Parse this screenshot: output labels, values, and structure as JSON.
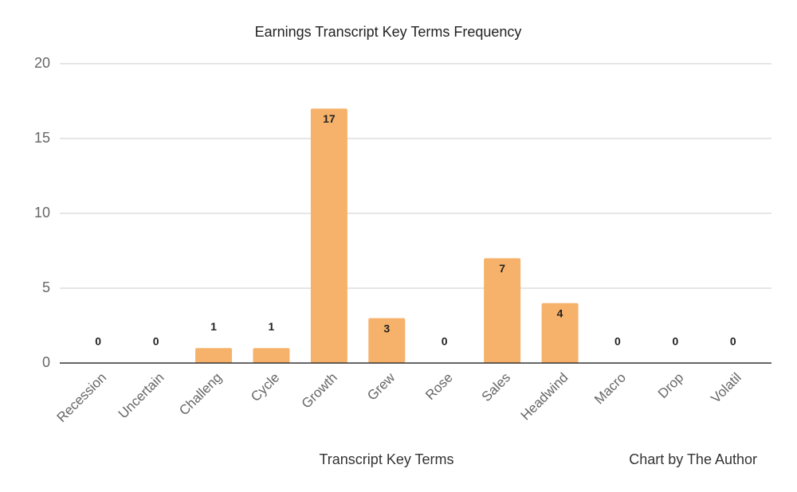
{
  "chart_data": {
    "type": "bar",
    "title": "Earnings Transcript Key Terms Frequency",
    "x_label": "Transcript Key Terms",
    "credit": "Chart by The Author",
    "categories": [
      "Recession",
      "Uncertain",
      "Challeng",
      "Cycle",
      "Growth",
      "Grew",
      "Rose",
      "Sales",
      "Headwind",
      "Macro",
      "Drop",
      "Volatil"
    ],
    "values": [
      0,
      0,
      1,
      1,
      17,
      3,
      0,
      7,
      4,
      0,
      0,
      0
    ],
    "color": "#f6b26b",
    "ylim": [
      0,
      20
    ],
    "yticks": [
      0,
      5,
      10,
      15,
      20
    ],
    "grid": true
  }
}
